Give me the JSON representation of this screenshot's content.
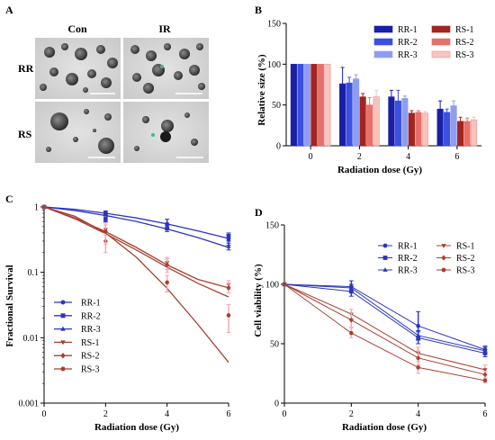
{
  "panels": {
    "A": {
      "letter": "A",
      "col_labels": [
        "Con",
        "IR"
      ],
      "row_labels": [
        "RR",
        "RS"
      ]
    },
    "B": {
      "letter": "B"
    },
    "C": {
      "letter": "C"
    },
    "D": {
      "letter": "D"
    }
  },
  "colors": {
    "RR-1": "#1a1fa6",
    "RR-2": "#3b4fe0",
    "RR-3": "#8f9df0",
    "RS-1": "#a3231d",
    "RS-2": "#e6706c",
    "RS-3": "#f6c4bc",
    "line_blue": "#2b35c0",
    "line_red": "#a8402f",
    "err_red": "#f2a8b3"
  },
  "chart_data": [
    {
      "panel": "B",
      "type": "bar",
      "xlabel": "Radiation dose (Gy)",
      "ylabel": "Relative size (%)",
      "ylim": [
        0,
        150
      ],
      "yticks": [
        0,
        50,
        100,
        150
      ],
      "categories": [
        "0",
        "2",
        "4",
        "6"
      ],
      "legend_position": "top-right",
      "series": [
        {
          "name": "RR-1",
          "values": [
            100,
            76,
            60,
            45
          ],
          "errors": [
            0,
            20,
            8,
            10
          ]
        },
        {
          "name": "RR-2",
          "values": [
            100,
            77,
            55,
            41
          ],
          "errors": [
            0,
            7,
            13,
            4
          ]
        },
        {
          "name": "RR-3",
          "values": [
            100,
            82,
            58,
            49
          ],
          "errors": [
            0,
            5,
            3,
            6
          ]
        },
        {
          "name": "RS-1",
          "values": [
            100,
            60,
            40,
            30
          ],
          "errors": [
            0,
            4,
            3,
            5
          ]
        },
        {
          "name": "RS-2",
          "values": [
            100,
            50,
            41,
            30
          ],
          "errors": [
            0,
            9,
            2,
            4
          ]
        },
        {
          "name": "RS-3",
          "values": [
            100,
            60,
            40,
            32
          ],
          "errors": [
            0,
            8,
            2,
            3
          ]
        }
      ]
    },
    {
      "panel": "C",
      "type": "line",
      "yscale": "log",
      "xlabel": "Radiation dose (Gy)",
      "ylabel": "Fractional Survival",
      "xlim": [
        0,
        6
      ],
      "xticks": [
        0,
        2,
        4,
        6
      ],
      "ylim": [
        0.001,
        1
      ],
      "yticks": [
        1,
        0.1,
        0.01,
        0.001
      ],
      "ytick_labels": [
        "1",
        "0.1",
        "0.01",
        "0.001"
      ],
      "legend_position": "bottom-left",
      "series": [
        {
          "name": "RR-1",
          "marker": "circle",
          "x": [
            0,
            2,
            4,
            6
          ],
          "y": [
            1,
            0.82,
            0.55,
            0.32
          ],
          "errors": [
            0,
            0.05,
            0.1,
            0.06
          ]
        },
        {
          "name": "RR-2",
          "marker": "square",
          "x": [
            0,
            2,
            4,
            6
          ],
          "y": [
            1,
            0.65,
            0.47,
            0.35
          ],
          "errors": [
            0,
            0.06,
            0.05,
            0.05
          ]
        },
        {
          "name": "RR-3",
          "marker": "triangle",
          "x": [
            0,
            2,
            4,
            6
          ],
          "y": [
            1,
            0.78,
            0.5,
            0.25
          ],
          "errors": [
            0,
            0.04,
            0.05,
            0.03
          ]
        },
        {
          "name": "RS-1",
          "marker": "triangle-down",
          "x": [
            0,
            2,
            4,
            6
          ],
          "y": [
            1,
            0.45,
            0.14,
            0.065
          ],
          "errors": [
            0,
            0.08,
            0.03,
            0.01
          ]
        },
        {
          "name": "RS-2",
          "marker": "diamond",
          "x": [
            0,
            2,
            4,
            6
          ],
          "y": [
            1,
            0.3,
            0.13,
            0.058
          ],
          "errors": [
            0,
            0.1,
            0.03,
            0.01
          ]
        },
        {
          "name": "RS-3",
          "marker": "circle",
          "x": [
            0,
            2,
            4,
            6
          ],
          "y": [
            1,
            0.42,
            0.07,
            0.022
          ],
          "errors": [
            0,
            0.15,
            0.02,
            0.01
          ]
        }
      ],
      "fit_curves": [
        {
          "name": "RR fit A",
          "x": [
            0,
            1,
            2,
            3,
            4,
            5,
            6
          ],
          "y": [
            1,
            0.92,
            0.8,
            0.68,
            0.55,
            0.43,
            0.33
          ]
        },
        {
          "name": "RR fit B",
          "x": [
            0,
            1,
            2,
            3,
            4,
            5,
            6
          ],
          "y": [
            1,
            0.88,
            0.74,
            0.6,
            0.46,
            0.34,
            0.24
          ]
        },
        {
          "name": "RS fit A",
          "x": [
            0,
            1,
            2,
            3,
            4,
            5,
            6
          ],
          "y": [
            1,
            0.68,
            0.42,
            0.24,
            0.13,
            0.078,
            0.058
          ]
        },
        {
          "name": "RS fit B",
          "x": [
            0,
            1,
            2,
            3,
            4,
            5,
            6
          ],
          "y": [
            1,
            0.66,
            0.39,
            0.22,
            0.12,
            0.068,
            0.042
          ]
        },
        {
          "name": "RS fit C",
          "x": [
            0,
            1,
            2,
            3,
            4,
            5,
            6
          ],
          "y": [
            1,
            0.72,
            0.4,
            0.17,
            0.057,
            0.016,
            0.0042
          ]
        }
      ]
    },
    {
      "panel": "D",
      "type": "line",
      "xlabel": "Radiation dose (Gy)",
      "ylabel": "Cell viability (%)",
      "xlim": [
        0,
        6
      ],
      "xticks": [
        0,
        2,
        4,
        6
      ],
      "ylim": [
        0,
        150
      ],
      "yticks": [
        0,
        50,
        100,
        150
      ],
      "legend_position": "top-right",
      "series": [
        {
          "name": "RR-1",
          "marker": "circle",
          "x": [
            0,
            2,
            4,
            6
          ],
          "y": [
            100,
            98,
            65,
            45
          ],
          "errors": [
            0,
            5,
            12,
            3
          ]
        },
        {
          "name": "RR-2",
          "marker": "square",
          "x": [
            0,
            2,
            4,
            6
          ],
          "y": [
            100,
            94,
            55,
            42
          ],
          "errors": [
            0,
            4,
            5,
            3
          ]
        },
        {
          "name": "RR-3",
          "marker": "triangle",
          "x": [
            0,
            2,
            4,
            6
          ],
          "y": [
            100,
            97,
            57,
            44
          ],
          "errors": [
            0,
            3,
            4,
            3
          ]
        },
        {
          "name": "RS-1",
          "marker": "triangle-down",
          "x": [
            0,
            2,
            4,
            6
          ],
          "y": [
            100,
            75,
            42,
            28
          ],
          "errors": [
            0,
            4,
            5,
            4
          ]
        },
        {
          "name": "RS-2",
          "marker": "diamond",
          "x": [
            0,
            2,
            4,
            6
          ],
          "y": [
            100,
            70,
            38,
            24
          ],
          "errors": [
            0,
            6,
            6,
            3
          ]
        },
        {
          "name": "RS-3",
          "marker": "circle",
          "x": [
            0,
            2,
            4,
            6
          ],
          "y": [
            100,
            59,
            30,
            19
          ],
          "errors": [
            0,
            4,
            5,
            2
          ]
        }
      ]
    }
  ]
}
